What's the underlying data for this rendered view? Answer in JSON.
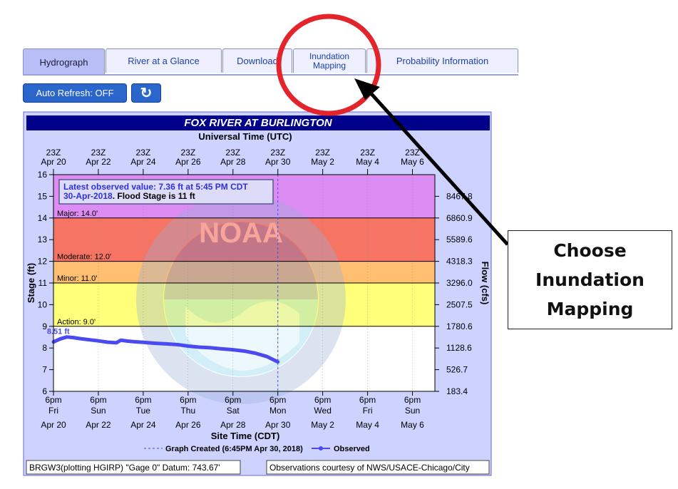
{
  "tabs": [
    {
      "label": "Hydrograph",
      "active": true
    },
    {
      "label": "River at a Glance"
    },
    {
      "label": "Download"
    },
    {
      "label_line1": "Inundation",
      "label_line2": "Mapping"
    },
    {
      "label": "Probability Information"
    }
  ],
  "controls": {
    "auto_refresh_label": "Auto Refresh: OFF",
    "refresh_icon": "refresh-icon",
    "refresh_glyph": "↻"
  },
  "callout": {
    "line1": "Choose",
    "line2": "Inundation",
    "line3": "Mapping"
  },
  "colors": {
    "tab_active": "#b8bff6",
    "major": "#dc8cf2",
    "moderate": "#f57464",
    "minor": "#ffbf70",
    "action": "#ffff7a",
    "observed": "#4a4af0",
    "title_bar": "#00008b",
    "annotation": "#e3242b"
  },
  "chart_data": {
    "type": "line",
    "title": "FOX RIVER AT BURLINGTON",
    "top_axis_title": "Universal Time (UTC)",
    "xlabel": "Site Time (CDT)",
    "ylabel": "Stage (ft)",
    "ylabel_right": "Flow (cfs)",
    "ylim": [
      6,
      16
    ],
    "y_ticks": [
      "6",
      "7",
      "8",
      "9",
      "10",
      "11",
      "12",
      "13",
      "14",
      "15",
      "16"
    ],
    "y_ticks_right": [
      "183.4",
      "526.7",
      "1128.6",
      "1780.6",
      "2507.5",
      "3296.0",
      "4318.3",
      "5589.6",
      "6860.9",
      "8467.8"
    ],
    "top_ticks": [
      {
        "hour": "23Z",
        "date": "Apr 20"
      },
      {
        "hour": "23Z",
        "date": "Apr 22"
      },
      {
        "hour": "23Z",
        "date": "Apr 24"
      },
      {
        "hour": "23Z",
        "date": "Apr 26"
      },
      {
        "hour": "23Z",
        "date": "Apr 28"
      },
      {
        "hour": "23Z",
        "date": "Apr 30"
      },
      {
        "hour": "23Z",
        "date": "May  2"
      },
      {
        "hour": "23Z",
        "date": "May  4"
      },
      {
        "hour": "23Z",
        "date": "May  6"
      }
    ],
    "bottom_ticks": [
      {
        "time": "6pm",
        "day": "Fri",
        "date": "Apr 20"
      },
      {
        "time": "6pm",
        "day": "Sun",
        "date": "Apr 22"
      },
      {
        "time": "6pm",
        "day": "Tue",
        "date": "Apr 24"
      },
      {
        "time": "6pm",
        "day": "Thu",
        "date": "Apr 26"
      },
      {
        "time": "6pm",
        "day": "Sat",
        "date": "Apr 28"
      },
      {
        "time": "6pm",
        "day": "Mon",
        "date": "Apr 30"
      },
      {
        "time": "6pm",
        "day": "Wed",
        "date": "May 2"
      },
      {
        "time": "6pm",
        "day": "Fri",
        "date": "May 4"
      },
      {
        "time": "6pm",
        "day": "Sun",
        "date": "May 6"
      }
    ],
    "x_unit": "days since Apr 20 6pm",
    "x_range": [
      0,
      17
    ],
    "flood_categories": [
      {
        "label": "Major: 14.0'",
        "from": 14,
        "to": 16,
        "color": "#dc8cf2"
      },
      {
        "label": "Moderate: 12.0'",
        "from": 12,
        "to": 14,
        "color": "#f57464"
      },
      {
        "label": "Minor: 11.0'",
        "from": 11,
        "to": 12,
        "color": "#ffbf70"
      },
      {
        "label": "Action: 9.0'",
        "from": 9,
        "to": 11,
        "color": "#ffff7a"
      }
    ],
    "peak_label": "8.51 ft",
    "latest_box": {
      "line1": "Latest observed value: 7.36 ft at 5:45 PM CDT",
      "line2_a": "30-Apr-2018",
      "line2_b": "Flood Stage is 11 ft"
    },
    "legend": {
      "created": "Graph Created (6:45PM Apr 30, 2018)",
      "observed": "Observed"
    },
    "created_x": 10.0,
    "series": [
      {
        "name": "Observed",
        "x": [
          0,
          0.3,
          0.6,
          0.9,
          1.2,
          1.6,
          2.0,
          2.4,
          2.8,
          3.0,
          3.3,
          3.6,
          4.0,
          4.5,
          5.0,
          5.5,
          6.0,
          6.5,
          7.0,
          7.5,
          8.0,
          8.5,
          9.0,
          9.5,
          9.8,
          10.0
        ],
        "y": [
          8.28,
          8.42,
          8.51,
          8.48,
          8.43,
          8.38,
          8.33,
          8.27,
          8.24,
          8.36,
          8.32,
          8.29,
          8.26,
          8.22,
          8.19,
          8.16,
          8.09,
          8.04,
          8.01,
          7.96,
          7.92,
          7.86,
          7.76,
          7.61,
          7.46,
          7.36
        ]
      }
    ],
    "footer_left": "BRGW3(plotting HGIRP) \"Gage 0\" Datum: 743.67'",
    "footer_right": "Observations courtesy of NWS/USACE-Chicago/City"
  }
}
